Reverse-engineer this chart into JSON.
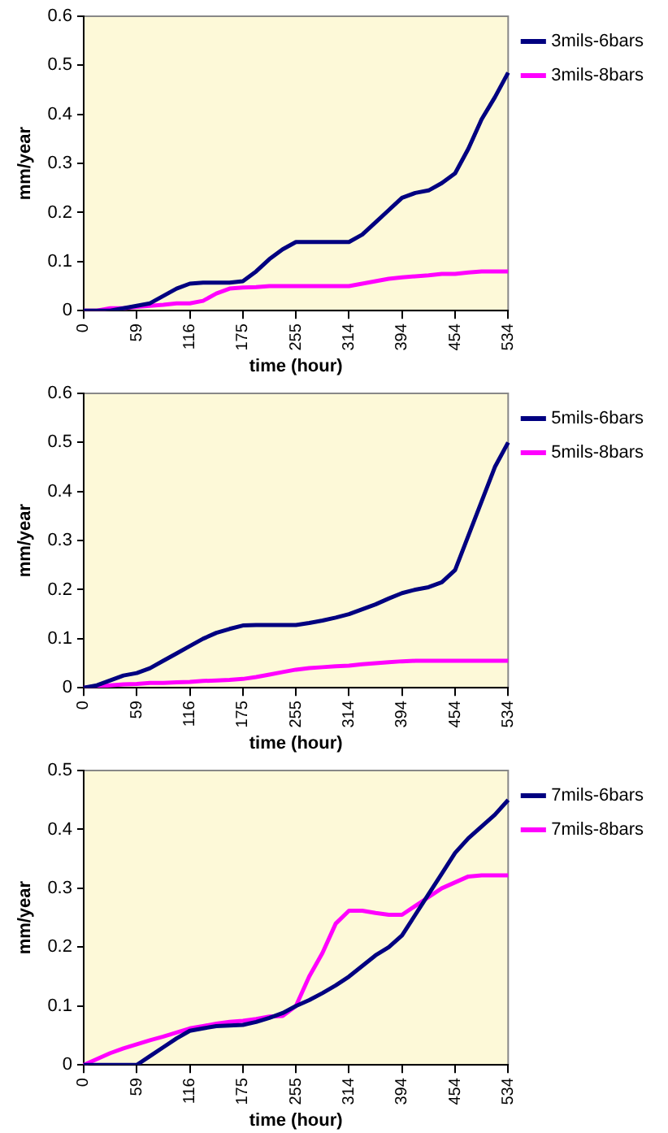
{
  "chart_data": [
    {
      "type": "line",
      "xlabel": "time (hour)",
      "ylabel": "mm/year",
      "categories": [
        "0",
        null,
        null,
        null,
        "59",
        null,
        null,
        null,
        "116",
        null,
        null,
        null,
        "175",
        null,
        null,
        null,
        "255",
        null,
        null,
        null,
        "314",
        null,
        null,
        null,
        "394",
        null,
        null,
        null,
        "454",
        null,
        null,
        null,
        "534"
      ],
      "ylim": [
        0,
        0.6
      ],
      "yticks": [
        0,
        0.1,
        0.2,
        0.3,
        0.4,
        0.5,
        0.6
      ],
      "grid": false,
      "legend": "right",
      "marker": "none",
      "series": [
        {
          "name": "3mils-6bars",
          "color": "#000080",
          "values": [
            0,
            0,
            0,
            0.005,
            0.01,
            0.015,
            0.03,
            0.045,
            0.055,
            0.057,
            0.057,
            0.057,
            0.06,
            0.08,
            0.105,
            0.125,
            0.14,
            0.14,
            0.14,
            0.14,
            0.14,
            0.155,
            0.18,
            0.205,
            0.23,
            0.24,
            0.245,
            0.26,
            0.28,
            0.33,
            0.39,
            0.435,
            0.485
          ]
        },
        {
          "name": "3mils-8bars",
          "color": "#ff00ff",
          "values": [
            0,
            0,
            0.005,
            0.005,
            0.008,
            0.01,
            0.012,
            0.015,
            0.015,
            0.02,
            0.035,
            0.045,
            0.047,
            0.048,
            0.05,
            0.05,
            0.05,
            0.05,
            0.05,
            0.05,
            0.05,
            0.055,
            0.06,
            0.065,
            0.068,
            0.07,
            0.072,
            0.075,
            0.075,
            0.078,
            0.08,
            0.08,
            0.08
          ]
        }
      ]
    },
    {
      "type": "line",
      "xlabel": "time (hour)",
      "ylabel": "mm/year",
      "categories": [
        "0",
        null,
        null,
        null,
        "59",
        null,
        null,
        null,
        "116",
        null,
        null,
        null,
        "175",
        null,
        null,
        null,
        "255",
        null,
        null,
        null,
        "314",
        null,
        null,
        null,
        "394",
        null,
        null,
        null,
        "454",
        null,
        null,
        null,
        "534"
      ],
      "ylim": [
        0,
        0.6
      ],
      "yticks": [
        0,
        0.1,
        0.2,
        0.3,
        0.4,
        0.5,
        0.6
      ],
      "grid": false,
      "legend": "right",
      "marker": "none",
      "series": [
        {
          "name": "5mils-6bars",
          "color": "#000080",
          "values": [
            0,
            0.005,
            0.015,
            0.025,
            0.03,
            0.04,
            0.055,
            0.07,
            0.085,
            0.1,
            0.112,
            0.12,
            0.127,
            0.128,
            0.128,
            0.128,
            0.128,
            0.132,
            0.137,
            0.143,
            0.15,
            0.16,
            0.17,
            0.182,
            0.193,
            0.2,
            0.205,
            0.215,
            0.24,
            0.31,
            0.38,
            0.45,
            0.5
          ]
        },
        {
          "name": "5mils-8bars",
          "color": "#ff00ff",
          "values": [
            0,
            0.003,
            0.005,
            0.007,
            0.008,
            0.01,
            0.01,
            0.011,
            0.012,
            0.014,
            0.015,
            0.016,
            0.018,
            0.022,
            0.027,
            0.032,
            0.037,
            0.04,
            0.042,
            0.044,
            0.045,
            0.048,
            0.05,
            0.052,
            0.054,
            0.055,
            0.055,
            0.055,
            0.055,
            0.055,
            0.055,
            0.055,
            0.055
          ]
        }
      ]
    },
    {
      "type": "line",
      "xlabel": "time (hour)",
      "ylabel": "mm/year",
      "categories": [
        "0",
        null,
        null,
        null,
        "59",
        null,
        null,
        null,
        "116",
        null,
        null,
        null,
        "175",
        null,
        null,
        null,
        "255",
        null,
        null,
        null,
        "314",
        null,
        null,
        null,
        "394",
        null,
        null,
        null,
        "454",
        null,
        null,
        null,
        "534"
      ],
      "ylim": [
        0,
        0.5
      ],
      "yticks": [
        0,
        0.1,
        0.2,
        0.3,
        0.4,
        0.5
      ],
      "grid": false,
      "legend": "right",
      "marker": "none",
      "series": [
        {
          "name": "7mils-6bars",
          "color": "#000080",
          "values": [
            0,
            0,
            0,
            0,
            0,
            0.015,
            0.03,
            0.045,
            0.058,
            0.062,
            0.066,
            0.067,
            0.068,
            0.073,
            0.08,
            0.088,
            0.1,
            0.11,
            0.122,
            0.135,
            0.15,
            0.168,
            0.186,
            0.2,
            0.22,
            0.255,
            0.29,
            0.325,
            0.36,
            0.385,
            0.405,
            0.425,
            0.45
          ]
        },
        {
          "name": "7mils-8bars",
          "color": "#ff00ff",
          "values": [
            0,
            0.01,
            0.02,
            0.028,
            0.035,
            0.042,
            0.048,
            0.055,
            0.062,
            0.066,
            0.07,
            0.073,
            0.075,
            0.078,
            0.082,
            0.083,
            0.1,
            0.15,
            0.19,
            0.24,
            0.262,
            0.262,
            0.258,
            0.255,
            0.255,
            0.27,
            0.285,
            0.3,
            0.31,
            0.32,
            0.322,
            0.322,
            0.322
          ]
        }
      ]
    }
  ]
}
